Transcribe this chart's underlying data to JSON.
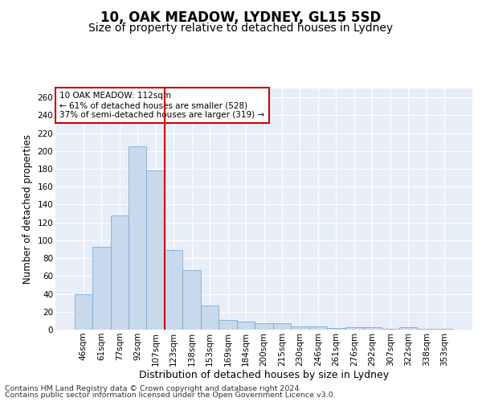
{
  "title1": "10, OAK MEADOW, LYDNEY, GL15 5SD",
  "title2": "Size of property relative to detached houses in Lydney",
  "xlabel": "Distribution of detached houses by size in Lydney",
  "ylabel": "Number of detached properties",
  "categories": [
    "46sqm",
    "61sqm",
    "77sqm",
    "92sqm",
    "107sqm",
    "123sqm",
    "138sqm",
    "153sqm",
    "169sqm",
    "184sqm",
    "200sqm",
    "215sqm",
    "230sqm",
    "246sqm",
    "261sqm",
    "276sqm",
    "292sqm",
    "307sqm",
    "322sqm",
    "338sqm",
    "353sqm"
  ],
  "values": [
    40,
    93,
    128,
    205,
    178,
    89,
    67,
    27,
    11,
    9,
    7,
    7,
    4,
    4,
    2,
    3,
    3,
    1,
    3,
    1,
    1
  ],
  "bar_color": "#c9d9ec",
  "bar_edge_color": "#7aadd4",
  "vline_color": "#cc0000",
  "vline_x_index": 4,
  "annotation_text": "10 OAK MEADOW: 112sqm\n← 61% of detached houses are smaller (528)\n37% of semi-detached houses are larger (319) →",
  "annotation_box_color": "white",
  "annotation_box_edge_color": "#cc0000",
  "ylim": [
    0,
    270
  ],
  "yticks": [
    0,
    20,
    40,
    60,
    80,
    100,
    120,
    140,
    160,
    180,
    200,
    220,
    240,
    260
  ],
  "footer1": "Contains HM Land Registry data © Crown copyright and database right 2024.",
  "footer2": "Contains public sector information licensed under the Open Government Licence v3.0.",
  "plot_bg_color": "#e8eef8",
  "grid_color": "#ffffff",
  "title1_fontsize": 12,
  "title2_fontsize": 10,
  "ylabel_fontsize": 8.5,
  "xlabel_fontsize": 9,
  "tick_fontsize": 7.5,
  "annotation_fontsize": 7.5,
  "footer_fontsize": 6.8
}
